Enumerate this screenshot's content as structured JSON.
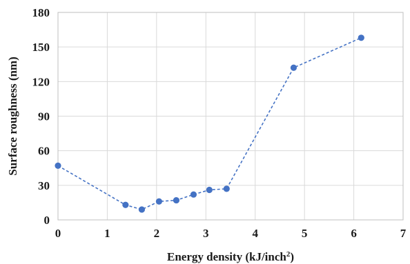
{
  "chart_data": {
    "type": "scatter",
    "xlabel": "Energy density (kJ/inch",
    "xlabel_sup": "2",
    "xlabel_end": ")",
    "ylabel": "Surface roughness (nm)",
    "xlim": [
      0,
      7
    ],
    "ylim": [
      0,
      180
    ],
    "x_ticks": [
      0,
      1,
      2,
      3,
      4,
      5,
      6,
      7
    ],
    "y_ticks": [
      0,
      30,
      60,
      90,
      120,
      150,
      180
    ],
    "grid": true,
    "series": [
      {
        "color": "#4472c4",
        "line_style": "dashed",
        "marker": "circle",
        "points": [
          {
            "x": 0.0,
            "y": 47
          },
          {
            "x": 1.37,
            "y": 13
          },
          {
            "x": 1.7,
            "y": 9
          },
          {
            "x": 2.05,
            "y": 16
          },
          {
            "x": 2.4,
            "y": 17
          },
          {
            "x": 2.75,
            "y": 22
          },
          {
            "x": 3.07,
            "y": 26
          },
          {
            "x": 3.42,
            "y": 27
          },
          {
            "x": 4.78,
            "y": 132
          },
          {
            "x": 6.15,
            "y": 158
          }
        ]
      }
    ]
  }
}
